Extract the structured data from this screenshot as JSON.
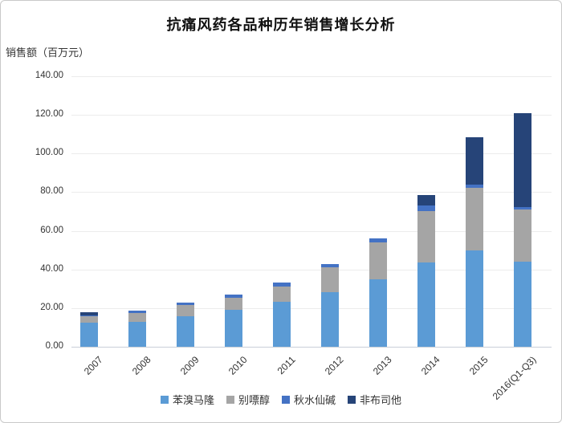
{
  "title": "抗痛风药各品种历年销售增长分析",
  "y_axis_label": "销售额（百万元）",
  "chart_data": {
    "type": "bar",
    "stacked": true,
    "title": "抗痛风药各品种历年销售增长分析",
    "ylabel": "销售额（百万元）",
    "xlabel": "",
    "grid": true,
    "legend_position": "bottom",
    "ylim": [
      0,
      140
    ],
    "ytick_step": 20,
    "ytick_labels": [
      "0.00",
      "20.00",
      "40.00",
      "60.00",
      "80.00",
      "100.00",
      "120.00",
      "140.00"
    ],
    "categories": [
      "2007",
      "2008",
      "2009",
      "2010",
      "2011",
      "2012",
      "2013",
      "2014",
      "2015",
      "2016(Q1-Q3)"
    ],
    "series": [
      {
        "name": "苯溴马隆",
        "color": "#5B9BD5",
        "values": [
          12.4,
          12.7,
          15.6,
          19.3,
          23.4,
          28.3,
          34.9,
          43.5,
          50.0,
          43.9
        ]
      },
      {
        "name": "别嘌醇",
        "color": "#A5A5A5",
        "values": [
          3.2,
          4.8,
          5.9,
          5.9,
          7.9,
          12.7,
          19.3,
          26.9,
          32.3,
          27.0
        ]
      },
      {
        "name": "秋水仙碱",
        "color": "#4472C4",
        "values": [
          0.7,
          1.3,
          1.4,
          1.8,
          1.8,
          1.8,
          2.0,
          2.6,
          1.8,
          1.5
        ]
      },
      {
        "name": "非布司他",
        "color": "#264478",
        "values": [
          1.7,
          0,
          0,
          0,
          0,
          0,
          0,
          5.6,
          24.5,
          48.6
        ]
      }
    ],
    "totals": [
      18.0,
      18.8,
      22.9,
      27.0,
      33.1,
      42.8,
      56.2,
      78.6,
      108.6,
      121.0
    ]
  },
  "layout_colors": {
    "gridline": "#ececec",
    "axis_line": "#c9cfd8",
    "text": "#333333"
  }
}
